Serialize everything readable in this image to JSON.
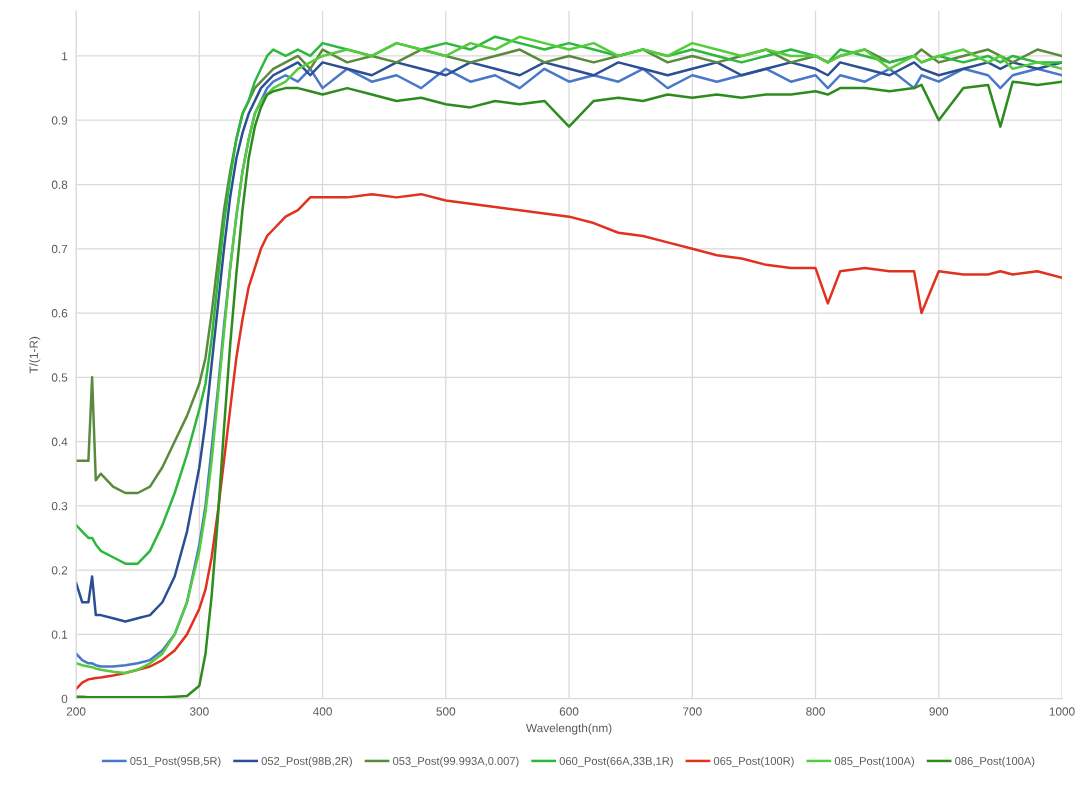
{
  "chart_data": {
    "type": "line",
    "xlabel": "Wavelength(nm)",
    "ylabel": "T/(1-R)",
    "x": [
      200,
      205,
      210,
      213,
      216,
      220,
      230,
      240,
      250,
      260,
      270,
      280,
      290,
      300,
      305,
      310,
      315,
      320,
      325,
      330,
      335,
      340,
      345,
      350,
      355,
      360,
      370,
      380,
      390,
      400,
      420,
      440,
      460,
      480,
      500,
      520,
      540,
      560,
      580,
      600,
      620,
      640,
      660,
      680,
      700,
      720,
      740,
      760,
      780,
      800,
      810,
      820,
      840,
      860,
      880,
      886,
      900,
      920,
      940,
      950,
      960,
      980,
      1000
    ],
    "xlim": [
      200,
      1000
    ],
    "xticks": [
      200,
      300,
      400,
      500,
      600,
      700,
      800,
      900,
      1000
    ],
    "ylim": [
      0,
      1.07
    ],
    "yticks": [
      0,
      0.1,
      0.2,
      0.3,
      0.4,
      0.5,
      0.6,
      0.7,
      0.8,
      0.9,
      1
    ],
    "grid": true,
    "legend": "bottom",
    "marker": "none",
    "line_style": "solid",
    "series": [
      {
        "name": "051_Post(95B,5R)",
        "color": "#4a78c8",
        "values": [
          0.07,
          0.06,
          0.055,
          0.055,
          0.052,
          0.05,
          0.05,
          0.052,
          0.055,
          0.06,
          0.075,
          0.1,
          0.15,
          0.24,
          0.3,
          0.39,
          0.48,
          0.58,
          0.67,
          0.75,
          0.82,
          0.87,
          0.91,
          0.93,
          0.95,
          0.96,
          0.97,
          0.96,
          0.98,
          0.95,
          0.98,
          0.96,
          0.97,
          0.95,
          0.98,
          0.96,
          0.97,
          0.95,
          0.98,
          0.96,
          0.97,
          0.96,
          0.98,
          0.95,
          0.97,
          0.96,
          0.97,
          0.98,
          0.96,
          0.97,
          0.95,
          0.97,
          0.96,
          0.98,
          0.95,
          0.97,
          0.96,
          0.98,
          0.97,
          0.95,
          0.97,
          0.98,
          0.97
        ]
      },
      {
        "name": "052_Post(98B,2R)",
        "color": "#2c4f94",
        "values": [
          0.18,
          0.15,
          0.15,
          0.19,
          0.13,
          0.13,
          0.125,
          0.12,
          0.125,
          0.13,
          0.15,
          0.19,
          0.26,
          0.36,
          0.43,
          0.52,
          0.61,
          0.7,
          0.78,
          0.84,
          0.88,
          0.91,
          0.93,
          0.95,
          0.96,
          0.97,
          0.98,
          0.99,
          0.97,
          0.99,
          0.98,
          0.97,
          0.99,
          0.98,
          0.97,
          0.99,
          0.98,
          0.97,
          0.99,
          0.98,
          0.97,
          0.99,
          0.98,
          0.97,
          0.98,
          0.99,
          0.97,
          0.98,
          0.99,
          0.98,
          0.97,
          0.99,
          0.98,
          0.97,
          0.99,
          0.98,
          0.97,
          0.98,
          0.99,
          0.98,
          0.99,
          0.98,
          0.99
        ]
      },
      {
        "name": "053_Post(99.993A,0.007)",
        "color": "#5b8a3c",
        "values": [
          0.37,
          0.37,
          0.37,
          0.5,
          0.34,
          0.35,
          0.33,
          0.32,
          0.32,
          0.33,
          0.36,
          0.4,
          0.44,
          0.49,
          0.53,
          0.6,
          0.68,
          0.76,
          0.82,
          0.87,
          0.91,
          0.93,
          0.95,
          0.96,
          0.97,
          0.98,
          0.99,
          1.0,
          0.98,
          1.01,
          0.99,
          1.0,
          0.99,
          1.01,
          1.0,
          0.99,
          1.0,
          1.01,
          0.99,
          1.0,
          0.99,
          1.0,
          1.01,
          0.99,
          1.0,
          0.99,
          1.0,
          1.01,
          0.99,
          1.0,
          0.99,
          1.0,
          1.01,
          0.99,
          1.0,
          1.01,
          0.99,
          1.0,
          1.01,
          1.0,
          0.99,
          1.01,
          1.0
        ]
      },
      {
        "name": "060_Post(66A,33B,1R)",
        "color": "#2db83d",
        "values": [
          0.27,
          0.26,
          0.25,
          0.25,
          0.24,
          0.23,
          0.22,
          0.21,
          0.21,
          0.23,
          0.27,
          0.32,
          0.38,
          0.45,
          0.49,
          0.56,
          0.65,
          0.74,
          0.81,
          0.87,
          0.91,
          0.93,
          0.96,
          0.98,
          1.0,
          1.01,
          1.0,
          1.01,
          1.0,
          1.02,
          1.01,
          1.0,
          1.02,
          1.01,
          1.02,
          1.01,
          1.03,
          1.02,
          1.01,
          1.02,
          1.01,
          1.0,
          1.01,
          1.0,
          1.01,
          1.0,
          0.99,
          1.0,
          1.01,
          1.0,
          0.99,
          1.01,
          1.0,
          0.99,
          1.0,
          0.99,
          1.0,
          0.99,
          1.0,
          0.99,
          1.0,
          0.99,
          0.99
        ]
      },
      {
        "name": "065_Post(100R)",
        "color": "#e0321e",
        "values": [
          0.015,
          0.025,
          0.03,
          0.031,
          0.032,
          0.033,
          0.036,
          0.04,
          0.045,
          0.05,
          0.06,
          0.075,
          0.1,
          0.14,
          0.17,
          0.22,
          0.29,
          0.37,
          0.45,
          0.53,
          0.59,
          0.64,
          0.67,
          0.7,
          0.72,
          0.73,
          0.75,
          0.76,
          0.78,
          0.78,
          0.78,
          0.785,
          0.78,
          0.785,
          0.775,
          0.77,
          0.765,
          0.76,
          0.755,
          0.75,
          0.74,
          0.725,
          0.72,
          0.71,
          0.7,
          0.69,
          0.685,
          0.675,
          0.67,
          0.67,
          0.615,
          0.665,
          0.67,
          0.665,
          0.665,
          0.6,
          0.665,
          0.66,
          0.66,
          0.665,
          0.66,
          0.665,
          0.655
        ]
      },
      {
        "name": "085_Post(100A)",
        "color": "#55cc3c",
        "values": [
          0.055,
          0.052,
          0.05,
          0.049,
          0.047,
          0.045,
          0.042,
          0.04,
          0.045,
          0.055,
          0.07,
          0.1,
          0.15,
          0.23,
          0.29,
          0.37,
          0.47,
          0.57,
          0.67,
          0.75,
          0.82,
          0.87,
          0.91,
          0.93,
          0.94,
          0.95,
          0.96,
          0.98,
          0.99,
          1.0,
          1.01,
          1.0,
          1.02,
          1.01,
          1.0,
          1.02,
          1.01,
          1.03,
          1.02,
          1.01,
          1.02,
          1.0,
          1.01,
          1.0,
          1.02,
          1.01,
          1.0,
          1.01,
          1.0,
          1.0,
          0.99,
          1.0,
          1.01,
          0.98,
          1.0,
          0.99,
          1.0,
          1.01,
          0.99,
          1.0,
          0.98,
          0.99,
          0.98
        ]
      },
      {
        "name": "086_Post(100A)",
        "color": "#2e8c1e",
        "values": [
          0.003,
          0.003,
          0.002,
          0.002,
          0.002,
          0.002,
          0.002,
          0.002,
          0.002,
          0.002,
          0.002,
          0.003,
          0.004,
          0.02,
          0.07,
          0.16,
          0.28,
          0.42,
          0.55,
          0.66,
          0.76,
          0.84,
          0.89,
          0.92,
          0.94,
          0.945,
          0.95,
          0.95,
          0.945,
          0.94,
          0.95,
          0.94,
          0.93,
          0.935,
          0.925,
          0.92,
          0.93,
          0.925,
          0.93,
          0.89,
          0.93,
          0.935,
          0.93,
          0.94,
          0.935,
          0.94,
          0.935,
          0.94,
          0.94,
          0.945,
          0.94,
          0.95,
          0.95,
          0.945,
          0.95,
          0.955,
          0.9,
          0.95,
          0.955,
          0.89,
          0.96,
          0.955,
          0.96
        ]
      }
    ]
  }
}
